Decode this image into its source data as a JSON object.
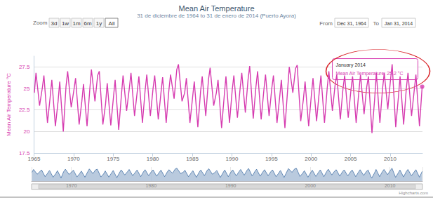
{
  "chart_data": {
    "type": "line",
    "title": "Mean Air Temperature",
    "subtitle": "31 de diciembre de 1964 to 31 de enero de 2014 (Puerto Ayora)",
    "y_label": "Mean Air Temperature °C",
    "color": "#d63cb0",
    "grid": true,
    "xlim": [
      1965,
      2014.08
    ],
    "xticks": [
      1965,
      1970,
      1975,
      1980,
      1985,
      1990,
      1995,
      2000,
      2005,
      2010
    ],
    "ylim": [
      17.5,
      28.75
    ],
    "yticks": [
      17.5,
      20,
      22.5,
      25,
      27.5
    ],
    "x": [
      1965.04,
      1965.25,
      1965.7,
      1966.04,
      1966.25,
      1966.7,
      1967.04,
      1967.25,
      1967.7,
      1968.04,
      1968.25,
      1968.7,
      1969.04,
      1969.25,
      1969.7,
      1970.04,
      1970.25,
      1970.7,
      1971.04,
      1971.25,
      1971.7,
      1972.04,
      1972.25,
      1972.7,
      1973.04,
      1973.25,
      1973.7,
      1974.04,
      1974.25,
      1974.7,
      1975.04,
      1975.25,
      1975.7,
      1976.04,
      1976.25,
      1976.7,
      1977.04,
      1977.25,
      1977.7,
      1978.04,
      1978.25,
      1978.7,
      1979.04,
      1979.25,
      1979.7,
      1980.04,
      1980.25,
      1980.7,
      1981.04,
      1981.25,
      1981.7,
      1982.04,
      1982.25,
      1982.7,
      1983.04,
      1983.25,
      1983.7,
      1984.04,
      1984.25,
      1984.7,
      1985.04,
      1985.25,
      1985.7,
      1986.04,
      1986.25,
      1986.7,
      1987.04,
      1987.25,
      1987.7,
      1988.04,
      1988.25,
      1988.7,
      1989.04,
      1989.25,
      1989.7,
      1990.04,
      1990.25,
      1990.7,
      1991.04,
      1991.25,
      1991.7,
      1992.04,
      1992.25,
      1992.7,
      1993.04,
      1993.25,
      1993.7,
      1994.04,
      1994.25,
      1994.7,
      1995.04,
      1995.25,
      1995.7,
      1996.04,
      1996.25,
      1996.7,
      1997.04,
      1997.25,
      1997.7,
      1998.04,
      1998.25,
      1998.7,
      1999.04,
      1999.25,
      1999.7,
      2000.04,
      2000.25,
      2000.7,
      2001.04,
      2001.25,
      2001.7,
      2002.04,
      2002.25,
      2002.7,
      2003.04,
      2003.25,
      2003.7,
      2004.04,
      2004.25,
      2004.7,
      2005.04,
      2005.25,
      2005.7,
      2006.04,
      2006.25,
      2006.7,
      2007.04,
      2007.25,
      2007.7,
      2008.04,
      2008.25,
      2008.7,
      2009.04,
      2009.25,
      2009.7,
      2010.04,
      2010.25,
      2010.7,
      2011.04,
      2011.25,
      2011.7,
      2012.04,
      2012.25,
      2012.7,
      2013.04,
      2013.25,
      2013.7,
      2014.04
    ],
    "values": [
      24.5,
      26.8,
      23.0,
      25.0,
      26.5,
      21.0,
      24.0,
      26.0,
      20.6,
      23.5,
      25.8,
      20.0,
      25.2,
      27.0,
      22.8,
      24.8,
      26.2,
      20.8,
      23.5,
      25.5,
      20.6,
      24.8,
      27.2,
      23.5,
      26.5,
      27.0,
      20.8,
      23.2,
      25.6,
      20.7,
      24.0,
      26.0,
      20.2,
      24.2,
      26.5,
      22.4,
      25.0,
      26.8,
      21.8,
      24.6,
      26.4,
      21.0,
      24.8,
      26.6,
      21.8,
      25.0,
      26.5,
      21.4,
      24.5,
      26.3,
      21.0,
      24.8,
      26.6,
      23.8,
      27.2,
      27.8,
      23.5,
      24.5,
      26.2,
      21.0,
      24.0,
      25.8,
      20.5,
      24.6,
      26.4,
      21.8,
      26.0,
      27.4,
      23.0,
      24.5,
      26.0,
      20.4,
      24.2,
      26.4,
      21.0,
      24.8,
      26.5,
      21.6,
      25.0,
      26.8,
      22.2,
      26.0,
      27.6,
      21.5,
      25.2,
      27.0,
      21.4,
      24.8,
      26.6,
      21.8,
      25.0,
      26.5,
      21.0,
      24.0,
      26.0,
      20.4,
      24.8,
      27.5,
      24.5,
      27.3,
      27.7,
      21.2,
      23.8,
      25.8,
      20.6,
      24.2,
      26.2,
      21.2,
      24.6,
      26.5,
      21.0,
      25.0,
      27.0,
      22.4,
      25.4,
      26.6,
      21.4,
      25.0,
      26.5,
      21.6,
      24.8,
      26.4,
      21.0,
      24.6,
      26.6,
      22.0,
      25.2,
      26.4,
      19.8,
      23.8,
      26.8,
      21.0,
      25.0,
      26.8,
      22.6,
      26.0,
      27.8,
      20.5,
      24.0,
      26.4,
      20.8,
      25.0,
      26.8,
      21.8,
      24.8,
      26.6,
      20.6,
      25.2
    ],
    "range_selector": {
      "zoom_label": "Zoom",
      "buttons": [
        "3d",
        "1w",
        "1m",
        "6m",
        "1y",
        "All"
      ],
      "from_label": "From",
      "from": "Dec 31, 1964",
      "to_label": "To",
      "to": "Jan 31, 2014"
    },
    "tooltip": {
      "title": "January 2014",
      "text": "Mean Air Temperature: 25.2 °C"
    },
    "navigator": {
      "color": "#4572a7",
      "xticks": [
        1970,
        1980,
        1990,
        2000,
        2010
      ]
    },
    "credits": "Highcharts.com"
  }
}
